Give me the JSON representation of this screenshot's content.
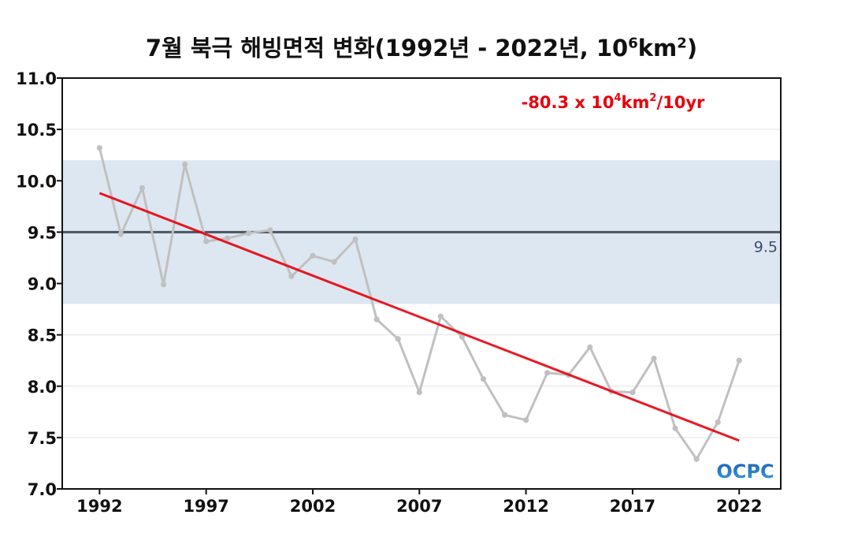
{
  "chart_data": {
    "type": "line",
    "title": {
      "prefix": "7월 북극 해빙면적 변화(1992년 - 2022년, 10",
      "sup1": "6",
      "mid": "km",
      "sup2": "2",
      "suffix": ")"
    },
    "trend_annotation": {
      "prefix": "-80.3 x 10",
      "sup1": "4",
      "mid": "km",
      "sup2": "2",
      "suffix": "/10yr"
    },
    "xlim": [
      1992,
      2022
    ],
    "x_plot_range": [
      1990.25,
      2023.95
    ],
    "ylim": [
      7.0,
      11.0
    ],
    "x_ticks": [
      1992,
      1997,
      2002,
      2007,
      2012,
      2017,
      2022
    ],
    "y_ticks": [
      "7.0",
      "7.5",
      "8.0",
      "8.5",
      "9.0",
      "9.5",
      "10.0",
      "10.5",
      "11.0"
    ],
    "grid": true,
    "series": [
      {
        "x": [
          1992,
          1993,
          1994,
          1995,
          1996,
          1997,
          1998,
          1999,
          2000,
          2001,
          2002,
          2003,
          2004,
          2005,
          2006,
          2007,
          2008,
          2009,
          2010,
          2011,
          2012,
          2013,
          2014,
          2015,
          2016,
          2017,
          2018,
          2019,
          2020,
          2021,
          2022
        ],
        "y": [
          10.32,
          9.48,
          9.93,
          8.99,
          10.16,
          9.41,
          9.44,
          9.49,
          9.52,
          9.07,
          9.27,
          9.21,
          9.43,
          8.65,
          8.46,
          7.94,
          8.68,
          8.48,
          8.07,
          7.72,
          7.67,
          8.13,
          8.11,
          8.38,
          7.95,
          7.94,
          8.27,
          7.59,
          7.29,
          7.65,
          8.25
        ],
        "color": "#c0c0c0"
      }
    ],
    "trend_line": {
      "x": [
        1992,
        2022
      ],
      "y": [
        9.88,
        7.47
      ],
      "color": "#e8000b"
    },
    "reference_line": {
      "value": 9.5,
      "label": "9.5",
      "color": "#4a5560"
    },
    "reference_band": {
      "y_range": [
        8.8,
        10.2
      ],
      "color": "#dde7f1"
    }
  },
  "logo": {
    "text": "OCPC",
    "colors": [
      "#1a5fb4",
      "#3aa0d8"
    ]
  }
}
